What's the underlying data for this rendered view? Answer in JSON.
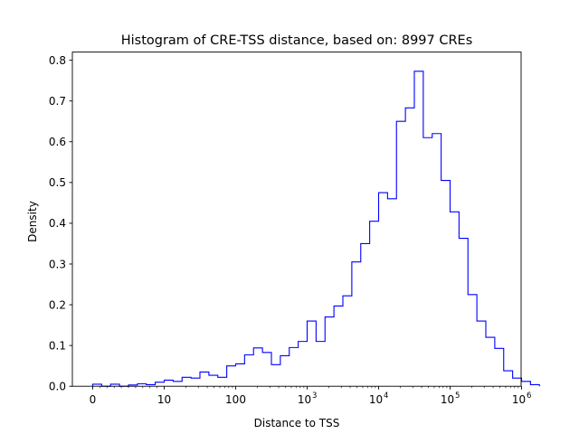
{
  "chart_data": {
    "type": "histogram",
    "title": "Histogram of CRE-TSS distance, based on: 8997 CREs",
    "xlabel": "Distance to TSS",
    "ylabel": "Density",
    "xscale": "symlog-like (linear near 0, then log10)",
    "xlim": [
      0,
      1000000
    ],
    "ylim": [
      0,
      0.82
    ],
    "x_ticks": [
      {
        "value": 0,
        "label": "0",
        "exp": ""
      },
      {
        "value": 10,
        "label": "10",
        "exp": ""
      },
      {
        "value": 100,
        "label": "100",
        "exp": ""
      },
      {
        "value": 1000,
        "label": "10",
        "exp": "3"
      },
      {
        "value": 10000,
        "label": "10",
        "exp": "4"
      },
      {
        "value": 100000,
        "label": "10",
        "exp": "5"
      },
      {
        "value": 1000000,
        "label": "10",
        "exp": "6"
      }
    ],
    "y_ticks": [
      {
        "value": 0.0,
        "label": "0.0"
      },
      {
        "value": 0.1,
        "label": "0.1"
      },
      {
        "value": 0.2,
        "label": "0.2"
      },
      {
        "value": 0.3,
        "label": "0.3"
      },
      {
        "value": 0.4,
        "label": "0.4"
      },
      {
        "value": 0.5,
        "label": "0.5"
      },
      {
        "value": 0.6,
        "label": "0.6"
      },
      {
        "value": 0.7,
        "label": "0.7"
      },
      {
        "value": 0.8,
        "label": "0.8"
      }
    ],
    "line_color": "#0000ff",
    "grid": false,
    "legend": "none",
    "bins": {
      "start_x": 0,
      "bin_width_note": "bins equally spaced on the displayed axis, 8 bins per decade",
      "densities": [
        0.005,
        0.0,
        0.005,
        0.0,
        0.003,
        0.006,
        0.004,
        0.01,
        0.015,
        0.012,
        0.022,
        0.02,
        0.035,
        0.027,
        0.022,
        0.05,
        0.055,
        0.077,
        0.094,
        0.083,
        0.053,
        0.075,
        0.095,
        0.11,
        0.16,
        0.11,
        0.17,
        0.197,
        0.222,
        0.305,
        0.35,
        0.405,
        0.475,
        0.46,
        0.65,
        0.683,
        0.773,
        0.61,
        0.62,
        0.505,
        0.428,
        0.363,
        0.225,
        0.16,
        0.12,
        0.093,
        0.038,
        0.02,
        0.012,
        0.004
      ]
    }
  }
}
